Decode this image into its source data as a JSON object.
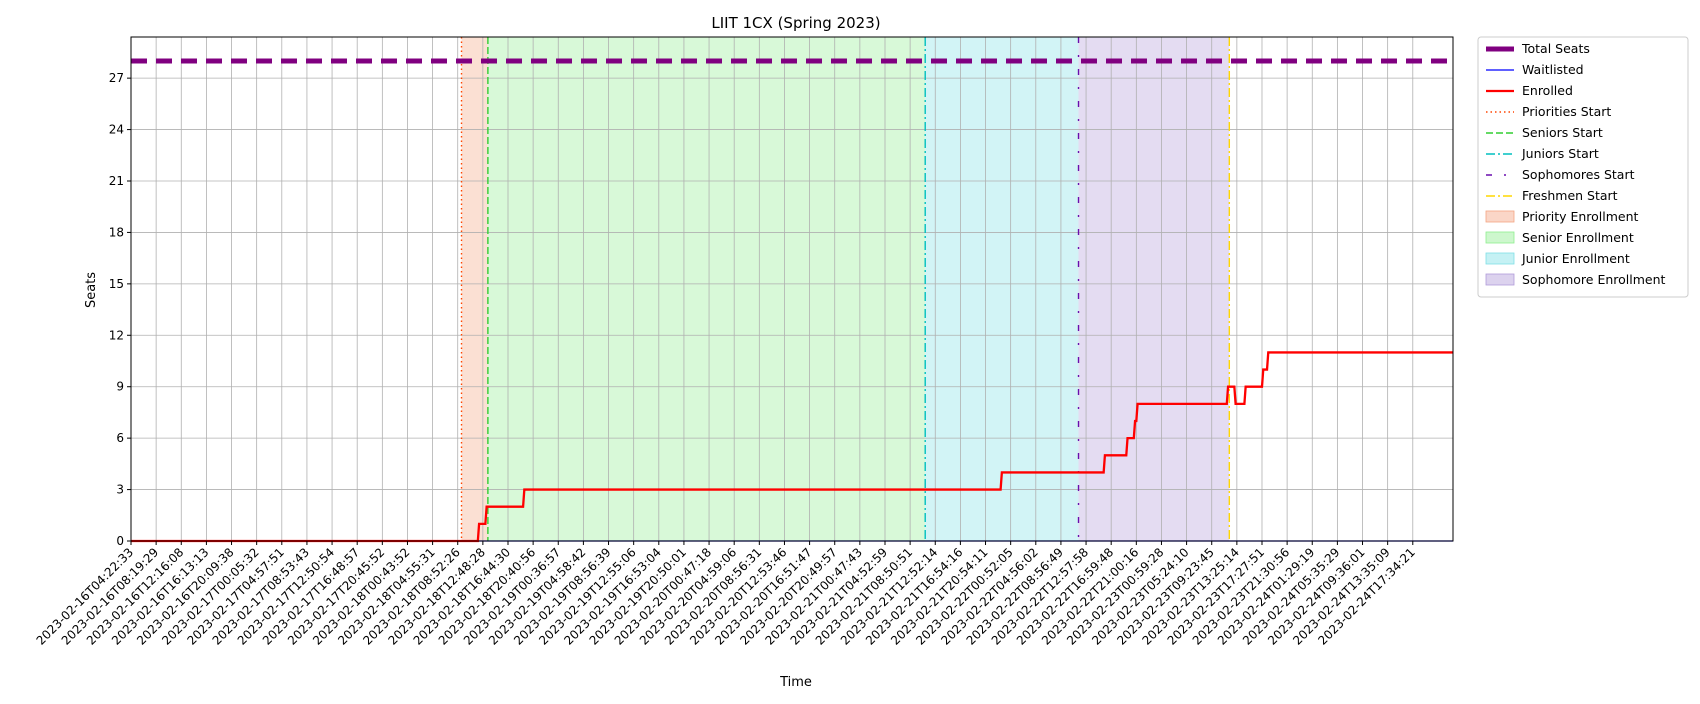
{
  "chart_data": {
    "type": "line",
    "title": "LIIT 1CX (Spring 2023)",
    "xlabel": "Time",
    "ylabel": "Seats",
    "ylim": [
      0,
      29.4
    ],
    "yticks": [
      0,
      3,
      6,
      9,
      12,
      15,
      18,
      21,
      24,
      27
    ],
    "xlim": [
      0,
      52.6
    ],
    "grid": true,
    "legend_position": "outside-right",
    "x_tick_labels": [
      "2023-02-16T04:22:33",
      "2023-02-16T08:19:29",
      "2023-02-16T12:16:08",
      "2023-02-16T16:13:13",
      "2023-02-16T20:09:38",
      "2023-02-17T00:05:32",
      "2023-02-17T04:57:51",
      "2023-02-17T08:53:43",
      "2023-02-17T12:50:54",
      "2023-02-17T16:48:57",
      "2023-02-17T20:45:52",
      "2023-02-18T00:43:52",
      "2023-02-18T04:55:31",
      "2023-02-18T08:52:26",
      "2023-02-18T12:48:28",
      "2023-02-18T16:44:30",
      "2023-02-18T20:40:56",
      "2023-02-19T00:36:57",
      "2023-02-19T04:58:42",
      "2023-02-19T08:56:39",
      "2023-02-19T12:55:06",
      "2023-02-19T16:53:04",
      "2023-02-19T20:50:01",
      "2023-02-20T00:47:18",
      "2023-02-20T04:59:06",
      "2023-02-20T08:56:31",
      "2023-02-20T12:53:46",
      "2023-02-20T16:51:47",
      "2023-02-20T20:49:57",
      "2023-02-21T00:47:43",
      "2023-02-21T04:52:59",
      "2023-02-21T08:50:51",
      "2023-02-21T12:52:14",
      "2023-02-21T16:54:16",
      "2023-02-21T20:54:11",
      "2023-02-22T00:52:05",
      "2023-02-22T04:56:02",
      "2023-02-22T08:56:49",
      "2023-02-22T12:57:58",
      "2023-02-22T16:59:48",
      "2023-02-22T21:00:16",
      "2023-02-23T00:59:28",
      "2023-02-23T05:24:10",
      "2023-02-23T09:23:45",
      "2023-02-23T13:25:14",
      "2023-02-23T17:27:51",
      "2023-02-23T21:30:56",
      "2023-02-24T01:29:19",
      "2023-02-24T05:35:29",
      "2023-02-24T09:36:01",
      "2023-02-24T13:35:09",
      "2023-02-24T17:34:21"
    ],
    "series": [
      {
        "name": "Total Seats",
        "color": "#800080",
        "style": "dashed-thick",
        "points": [
          [
            0,
            28
          ],
          [
            52.6,
            28
          ]
        ]
      },
      {
        "name": "Waitlisted",
        "color": "#0000ff",
        "style": "solid",
        "points": [
          [
            0,
            0
          ],
          [
            52.6,
            0
          ]
        ]
      },
      {
        "name": "Enrolled",
        "color": "#ff0000",
        "style": "solid",
        "points": [
          [
            0,
            0
          ],
          [
            13.8,
            0
          ],
          [
            13.85,
            1
          ],
          [
            14.1,
            1
          ],
          [
            14.15,
            2
          ],
          [
            15.6,
            2
          ],
          [
            15.65,
            3
          ],
          [
            34.6,
            3
          ],
          [
            34.65,
            4
          ],
          [
            38.7,
            4
          ],
          [
            38.75,
            5
          ],
          [
            39.6,
            5
          ],
          [
            39.65,
            6
          ],
          [
            39.9,
            6
          ],
          [
            39.95,
            7
          ],
          [
            40,
            7
          ],
          [
            40.05,
            8
          ],
          [
            43.6,
            8
          ],
          [
            43.65,
            9
          ],
          [
            43.9,
            9
          ],
          [
            43.95,
            8
          ],
          [
            44.3,
            8
          ],
          [
            44.35,
            9
          ],
          [
            45,
            9
          ],
          [
            45.05,
            10
          ],
          [
            45.2,
            10
          ],
          [
            45.25,
            11
          ],
          [
            52.6,
            11
          ]
        ]
      }
    ],
    "markers": [
      {
        "name": "Priorities Start",
        "x": 13.15,
        "color": "#ff4500",
        "style": "dotted"
      },
      {
        "name": "Seniors Start",
        "x": 14.2,
        "color": "#32cd32",
        "style": "dashed"
      },
      {
        "name": "Juniors Start",
        "x": 31.6,
        "color": "#00bfbf",
        "style": "dashdot"
      },
      {
        "name": "Sophomores Start",
        "x": 37.7,
        "color": "#6a0dad",
        "style": "dashdot-sparse"
      },
      {
        "name": "Freshmen Start",
        "x": 43.7,
        "color": "#ffd700",
        "style": "dashdot"
      }
    ],
    "spans": [
      {
        "name": "Priority Enrollment",
        "x0": 13.15,
        "x1": 14.2,
        "color": "#f4a582"
      },
      {
        "name": "Senior Enrollment",
        "x0": 14.2,
        "x1": 31.6,
        "color": "#90ee90"
      },
      {
        "name": "Junior Enrollment",
        "x0": 31.6,
        "x1": 37.7,
        "color": "#7fe0e6"
      },
      {
        "name": "Sophomore Enrollment",
        "x0": 37.7,
        "x1": 43.7,
        "color": "#b19cd9"
      }
    ],
    "legend": [
      "Total Seats",
      "Waitlisted",
      "Enrolled",
      "Priorities Start",
      "Seniors Start",
      "Juniors Start",
      "Sophomores Start",
      "Freshmen Start",
      "Priority Enrollment",
      "Senior Enrollment",
      "Junior Enrollment",
      "Sophomore Enrollment"
    ]
  }
}
